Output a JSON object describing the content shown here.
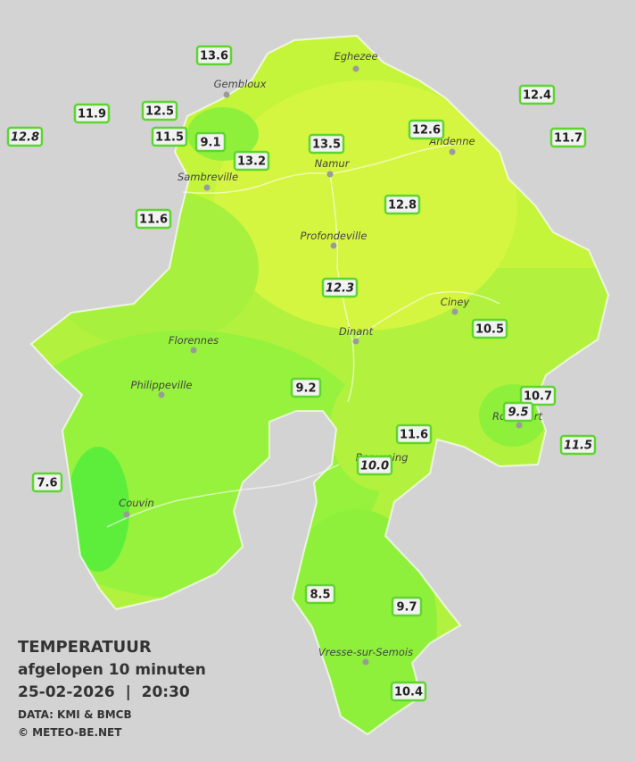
{
  "legend": {
    "title": "TEMPERATUUR",
    "subtitle": "afgelopen 10 minuten",
    "datetime": "25-02-2026  |  20:30",
    "source": "DATA: KMI & BMCB",
    "credit": "© METEO-BE.NET"
  },
  "towns": [
    "Eghezee",
    "Gembloux",
    "Andenne",
    "Namur",
    "Sambreville",
    "Profondeville",
    "Ciney",
    "Dinant",
    "Florennes",
    "Philippeville",
    "Beauraing",
    "Rochefort",
    "Couvin",
    "Vresse-sur-Semois"
  ],
  "stations": [
    {
      "value": "13.6",
      "italic": false
    },
    {
      "value": "12.5",
      "italic": false
    },
    {
      "value": "11.9",
      "italic": false
    },
    {
      "value": "12.8",
      "italic": true
    },
    {
      "value": "11.5",
      "italic": false
    },
    {
      "value": "9.1",
      "italic": false
    },
    {
      "value": "13.2",
      "italic": false
    },
    {
      "value": "13.5",
      "italic": false
    },
    {
      "value": "12.6",
      "italic": false
    },
    {
      "value": "12.4",
      "italic": false
    },
    {
      "value": "11.7",
      "italic": false
    },
    {
      "value": "11.6",
      "italic": false
    },
    {
      "value": "12.8",
      "italic": false
    },
    {
      "value": "12.3",
      "italic": true
    },
    {
      "value": "10.5",
      "italic": false
    },
    {
      "value": "9.2",
      "italic": false
    },
    {
      "value": "10.7",
      "italic": false
    },
    {
      "value": "9.5",
      "italic": true
    },
    {
      "value": "11.6",
      "italic": false
    },
    {
      "value": "10.0",
      "italic": true
    },
    {
      "value": "11.5",
      "italic": true
    },
    {
      "value": "7.6",
      "italic": false
    },
    {
      "value": "8.5",
      "italic": false
    },
    {
      "value": "9.7",
      "italic": false
    },
    {
      "value": "10.4",
      "italic": false
    }
  ]
}
